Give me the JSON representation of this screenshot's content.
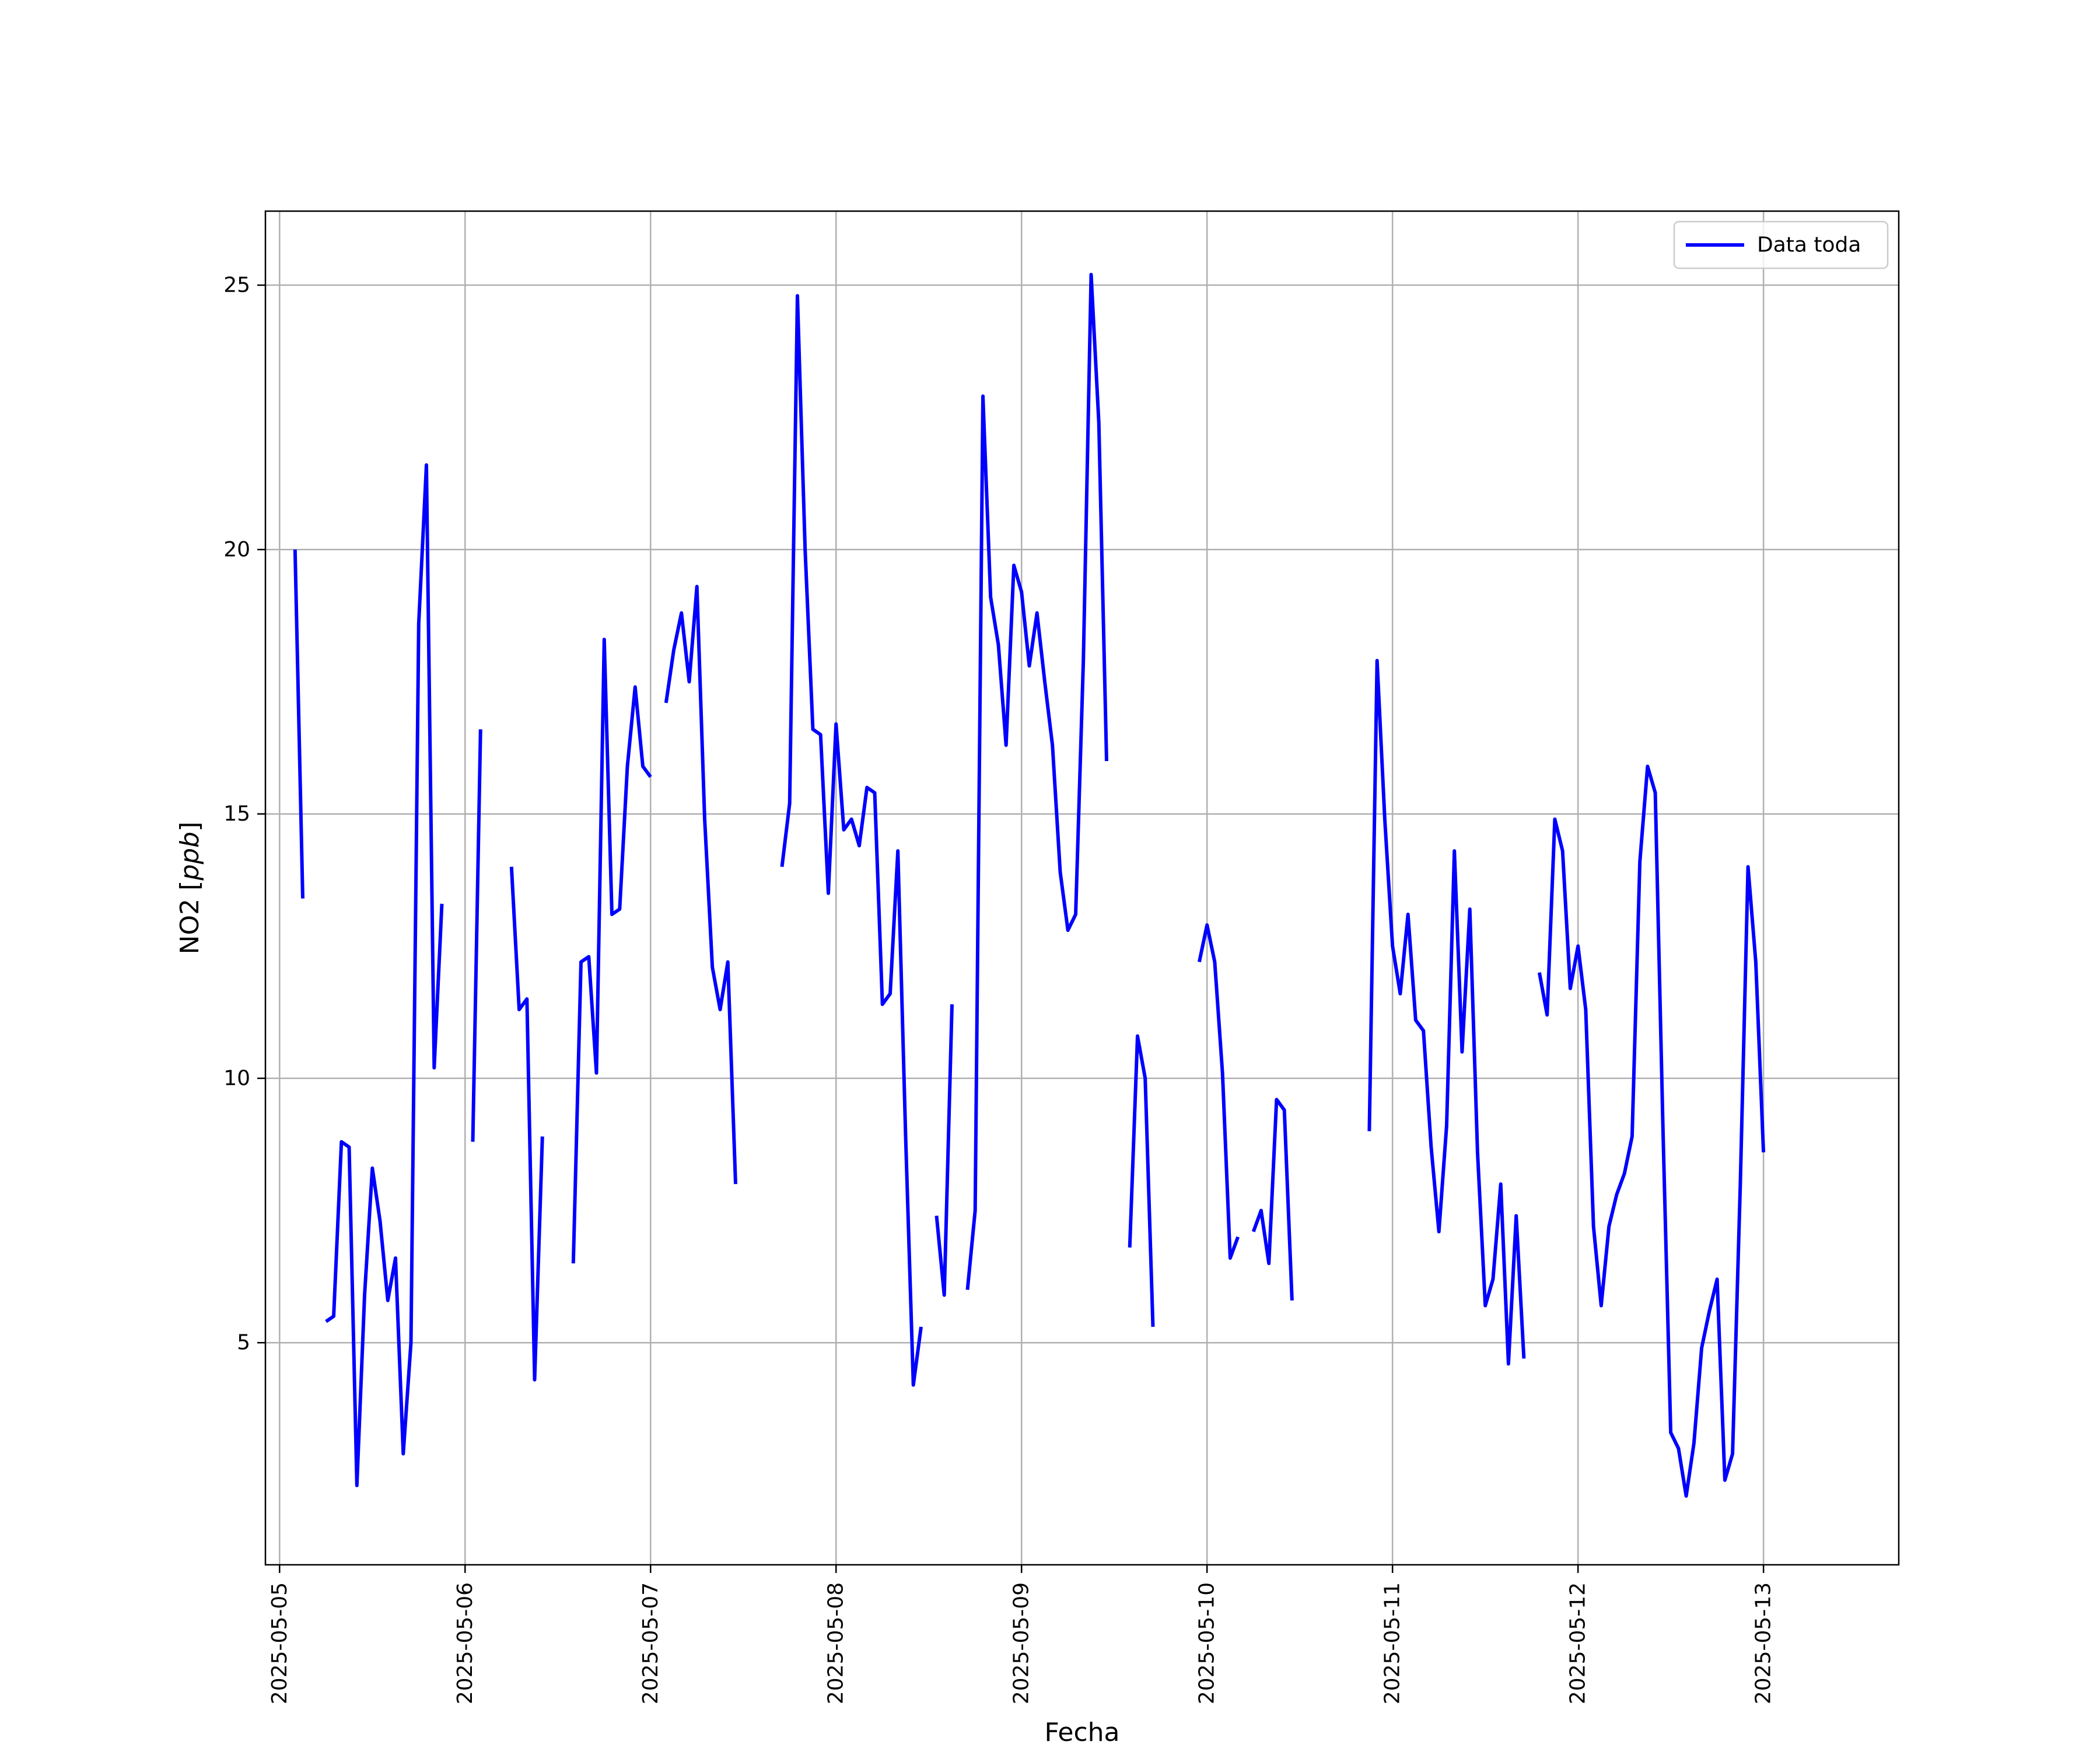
{
  "chart_data": {
    "type": "line",
    "xlabel": "Fecha",
    "ylabel_prefix": "NO2 [",
    "ylabel_unit": "ppb",
    "ylabel_suffix": "]",
    "xlim": [
      "2025-05-04 22:10",
      "2025-05-13 17:30"
    ],
    "ylim": [
      0.8,
      26.4
    ],
    "x_ticks": [
      "2025-05-05",
      "2025-05-06",
      "2025-05-07",
      "2025-05-08",
      "2025-05-09",
      "2025-05-10",
      "2025-05-11",
      "2025-05-12",
      "2025-05-13"
    ],
    "y_ticks": [
      5,
      10,
      15,
      20,
      25
    ],
    "grid": true,
    "legend_position": "upper right",
    "series": [
      {
        "name": "Data toda",
        "color": "#0000ff",
        "segments": [
          [
            [
              "2025-05-05 02:00",
              20.0
            ],
            [
              "2025-05-05 03:00",
              13.4
            ]
          ],
          [
            [
              "2025-05-05 06:00",
              5.4
            ],
            [
              "2025-05-05 07:00",
              5.5
            ],
            [
              "2025-05-05 08:00",
              8.8
            ],
            [
              "2025-05-05 09:00",
              8.7
            ],
            [
              "2025-05-05 10:00",
              2.3
            ],
            [
              "2025-05-05 11:00",
              5.9
            ],
            [
              "2025-05-05 12:00",
              8.3
            ],
            [
              "2025-05-05 13:00",
              7.3
            ],
            [
              "2025-05-05 14:00",
              5.8
            ],
            [
              "2025-05-05 15:00",
              6.6
            ],
            [
              "2025-05-05 16:00",
              2.9
            ],
            [
              "2025-05-05 17:00",
              5.0
            ],
            [
              "2025-05-05 18:00",
              18.6
            ],
            [
              "2025-05-05 19:00",
              21.6
            ],
            [
              "2025-05-05 20:00",
              10.2
            ],
            [
              "2025-05-05 21:00",
              13.3
            ]
          ],
          [
            [
              "2025-05-06 01:00",
              8.8
            ],
            [
              "2025-05-06 02:00",
              16.6
            ]
          ],
          [
            [
              "2025-05-06 06:00",
              14.0
            ],
            [
              "2025-05-06 07:00",
              11.3
            ],
            [
              "2025-05-06 08:00",
              11.5
            ],
            [
              "2025-05-06 09:00",
              4.3
            ],
            [
              "2025-05-06 10:00",
              8.9
            ]
          ],
          [
            [
              "2025-05-06 14:00",
              6.5
            ],
            [
              "2025-05-06 15:00",
              12.2
            ],
            [
              "2025-05-06 16:00",
              12.3
            ],
            [
              "2025-05-06 17:00",
              10.1
            ],
            [
              "2025-05-06 18:00",
              18.3
            ],
            [
              "2025-05-06 19:00",
              13.1
            ],
            [
              "2025-05-06 20:00",
              13.2
            ],
            [
              "2025-05-06 21:00",
              15.9
            ],
            [
              "2025-05-06 22:00",
              17.4
            ],
            [
              "2025-05-06 23:00",
              15.9
            ],
            [
              "2025-05-07 00:00",
              15.7
            ]
          ],
          [
            [
              "2025-05-07 02:00",
              17.1
            ],
            [
              "2025-05-07 03:00",
              18.1
            ],
            [
              "2025-05-07 04:00",
              18.8
            ],
            [
              "2025-05-07 05:00",
              17.5
            ],
            [
              "2025-05-07 06:00",
              19.3
            ],
            [
              "2025-05-07 07:00",
              14.9
            ],
            [
              "2025-05-07 08:00",
              12.1
            ],
            [
              "2025-05-07 09:00",
              11.3
            ],
            [
              "2025-05-07 10:00",
              12.2
            ],
            [
              "2025-05-07 11:00",
              8.0
            ]
          ],
          [
            [
              "2025-05-07 17:00",
              14.0
            ],
            [
              "2025-05-07 18:00",
              15.2
            ],
            [
              "2025-05-07 19:00",
              24.8
            ],
            [
              "2025-05-07 20:00",
              20.0
            ],
            [
              "2025-05-07 21:00",
              16.6
            ],
            [
              "2025-05-07 22:00",
              16.5
            ],
            [
              "2025-05-07 23:00",
              13.5
            ],
            [
              "2025-05-08 00:00",
              16.7
            ],
            [
              "2025-05-08 01:00",
              14.7
            ],
            [
              "2025-05-08 02:00",
              14.9
            ],
            [
              "2025-05-08 03:00",
              14.4
            ],
            [
              "2025-05-08 04:00",
              15.5
            ],
            [
              "2025-05-08 05:00",
              15.4
            ],
            [
              "2025-05-08 06:00",
              11.4
            ],
            [
              "2025-05-08 07:00",
              11.6
            ],
            [
              "2025-05-08 08:00",
              14.3
            ],
            [
              "2025-05-08 09:00",
              8.9
            ],
            [
              "2025-05-08 10:00",
              4.2
            ],
            [
              "2025-05-08 11:00",
              5.3
            ]
          ],
          [
            [
              "2025-05-08 13:00",
              7.4
            ],
            [
              "2025-05-08 14:00",
              5.9
            ],
            [
              "2025-05-08 15:00",
              11.4
            ]
          ],
          [
            [
              "2025-05-08 17:00",
              6.0
            ],
            [
              "2025-05-08 18:00",
              7.5
            ],
            [
              "2025-05-08 19:00",
              22.9
            ],
            [
              "2025-05-08 20:00",
              19.1
            ],
            [
              "2025-05-08 21:00",
              18.2
            ],
            [
              "2025-05-08 22:00",
              16.3
            ],
            [
              "2025-05-08 23:00",
              19.7
            ],
            [
              "2025-05-09 00:00",
              19.2
            ],
            [
              "2025-05-09 01:00",
              17.8
            ],
            [
              "2025-05-09 02:00",
              18.8
            ],
            [
              "2025-05-09 03:00",
              17.5
            ],
            [
              "2025-05-09 04:00",
              16.3
            ],
            [
              "2025-05-09 05:00",
              13.9
            ],
            [
              "2025-05-09 06:00",
              12.8
            ],
            [
              "2025-05-09 07:00",
              13.1
            ],
            [
              "2025-05-09 08:00",
              17.9
            ],
            [
              "2025-05-09 09:00",
              25.2
            ],
            [
              "2025-05-09 10:00",
              22.4
            ],
            [
              "2025-05-09 11:00",
              16.0
            ]
          ],
          [
            [
              "2025-05-09 14:00",
              6.8
            ],
            [
              "2025-05-09 15:00",
              10.8
            ],
            [
              "2025-05-09 16:00",
              10.0
            ],
            [
              "2025-05-09 17:00",
              5.3
            ]
          ],
          [
            [
              "2025-05-09 23:00",
              12.2
            ],
            [
              "2025-05-10 00:00",
              12.9
            ],
            [
              "2025-05-10 01:00",
              12.2
            ],
            [
              "2025-05-10 02:00",
              10.1
            ],
            [
              "2025-05-10 03:00",
              6.6
            ],
            [
              "2025-05-10 04:00",
              7.0
            ]
          ],
          [
            [
              "2025-05-10 06:00",
              7.1
            ],
            [
              "2025-05-10 07:00",
              7.5
            ],
            [
              "2025-05-10 08:00",
              6.5
            ],
            [
              "2025-05-10 09:00",
              9.6
            ],
            [
              "2025-05-10 10:00",
              9.4
            ],
            [
              "2025-05-10 11:00",
              5.8
            ]
          ],
          [
            [
              "2025-05-10 21:00",
              9.0
            ],
            [
              "2025-05-10 22:00",
              17.9
            ],
            [
              "2025-05-10 23:00",
              14.9
            ],
            [
              "2025-05-11 00:00",
              12.5
            ],
            [
              "2025-05-11 01:00",
              11.6
            ],
            [
              "2025-05-11 02:00",
              13.1
            ],
            [
              "2025-05-11 03:00",
              11.1
            ],
            [
              "2025-05-11 04:00",
              10.9
            ],
            [
              "2025-05-11 05:00",
              8.7
            ],
            [
              "2025-05-11 06:00",
              7.1
            ],
            [
              "2025-05-11 07:00",
              9.1
            ],
            [
              "2025-05-11 08:00",
              14.3
            ],
            [
              "2025-05-11 09:00",
              10.5
            ],
            [
              "2025-05-11 10:00",
              13.2
            ],
            [
              "2025-05-11 11:00",
              8.6
            ],
            [
              "2025-05-11 12:00",
              5.7
            ],
            [
              "2025-05-11 13:00",
              6.2
            ],
            [
              "2025-05-11 14:00",
              8.0
            ],
            [
              "2025-05-11 15:00",
              4.6
            ],
            [
              "2025-05-11 16:00",
              7.4
            ],
            [
              "2025-05-11 17:00",
              4.7
            ]
          ],
          [
            [
              "2025-05-11 19:00",
              12.0
            ],
            [
              "2025-05-11 20:00",
              11.2
            ],
            [
              "2025-05-11 21:00",
              14.9
            ],
            [
              "2025-05-11 22:00",
              14.3
            ],
            [
              "2025-05-11 23:00",
              11.7
            ],
            [
              "2025-05-12 00:00",
              12.5
            ],
            [
              "2025-05-12 01:00",
              11.3
            ],
            [
              "2025-05-12 02:00",
              7.2
            ],
            [
              "2025-05-12 03:00",
              5.7
            ],
            [
              "2025-05-12 04:00",
              7.2
            ],
            [
              "2025-05-12 05:00",
              7.8
            ],
            [
              "2025-05-12 06:00",
              8.2
            ],
            [
              "2025-05-12 07:00",
              8.9
            ],
            [
              "2025-05-12 08:00",
              14.1
            ],
            [
              "2025-05-12 09:00",
              15.9
            ],
            [
              "2025-05-12 10:00",
              15.4
            ],
            [
              "2025-05-12 11:00",
              9.0
            ],
            [
              "2025-05-12 12:00",
              3.3
            ],
            [
              "2025-05-12 13:00",
              3.0
            ],
            [
              "2025-05-12 14:00",
              2.1
            ],
            [
              "2025-05-12 15:00",
              3.1
            ],
            [
              "2025-05-12 16:00",
              4.9
            ],
            [
              "2025-05-12 17:00",
              5.6
            ],
            [
              "2025-05-12 18:00",
              6.2
            ],
            [
              "2025-05-12 19:00",
              2.4
            ],
            [
              "2025-05-12 20:00",
              2.9
            ],
            [
              "2025-05-12 21:00",
              8.0
            ],
            [
              "2025-05-12 22:00",
              14.0
            ],
            [
              "2025-05-12 23:00",
              12.2
            ],
            [
              "2025-05-13 00:00",
              8.6
            ]
          ]
        ]
      }
    ]
  }
}
